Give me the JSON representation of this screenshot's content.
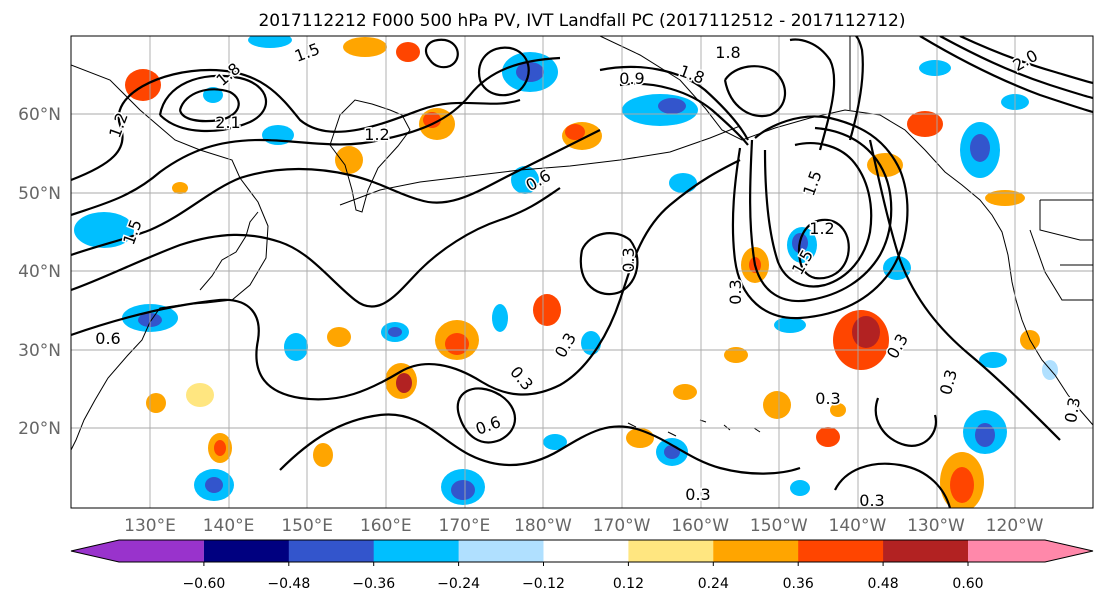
{
  "title": "2017112212 F000 500 hPa PV, IVT Landfall PC (2017112512 - 2017112712)",
  "lat_ticks": [
    "60°N",
    "50°N",
    "40°N",
    "30°N",
    "20°N"
  ],
  "lon_ticks": [
    "130°E",
    "140°E",
    "150°E",
    "160°E",
    "170°E",
    "180°W",
    "170°W",
    "160°W",
    "150°W",
    "140°W",
    "130°W",
    "120°W"
  ],
  "colorbar": {
    "colors": [
      "#9933cc",
      "#000080",
      "#3355cc",
      "#00bfff",
      "#b0e0ff",
      "#ffffff",
      "#ffe680",
      "#ffa500",
      "#ff4500",
      "#b22222",
      "#ff88aa"
    ],
    "tick_labels": [
      "−0.60",
      "−0.48",
      "−0.36",
      "−0.24",
      "−0.12",
      "0.12",
      "0.24",
      "0.36",
      "0.48",
      "0.60"
    ]
  },
  "contour_labels": [
    "1.5",
    "1.8",
    "2.1",
    "1.8",
    "1.2",
    "1.2",
    "1.5",
    "0.6",
    "0.9",
    "1.8",
    "1.5",
    "1.2",
    "1.5",
    "0.3",
    "0.3",
    "0.6",
    "0.3",
    "0.6",
    "0.3",
    "0.3",
    "0.3",
    "0.3",
    "0.3",
    "0.3",
    "0.3",
    "2.0"
  ]
}
